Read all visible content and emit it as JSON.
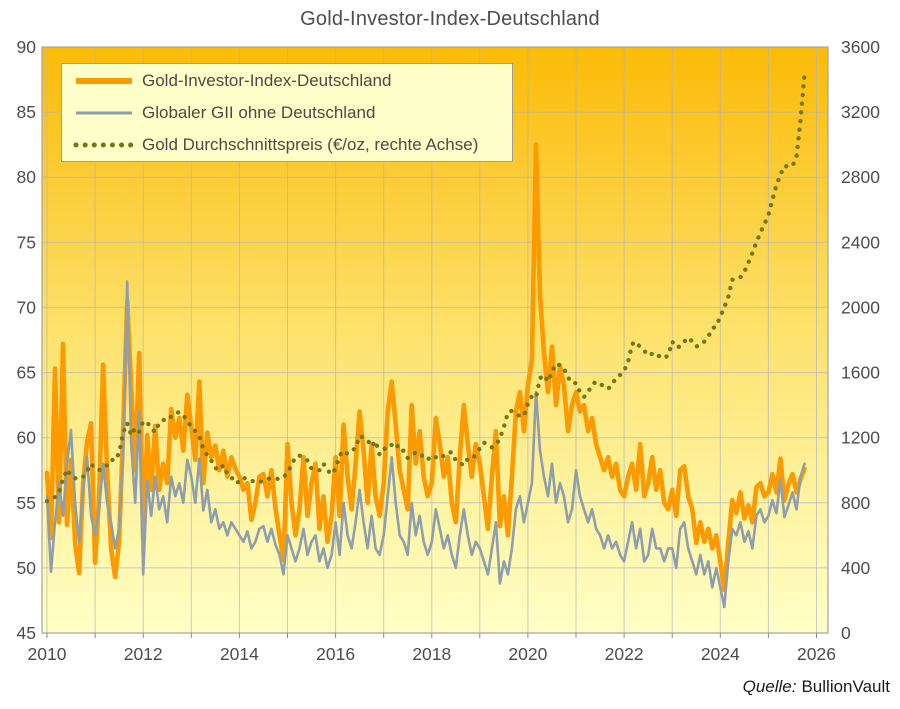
{
  "page": {
    "source_prefix": "Quelle:",
    "source_name": "BullionVault"
  },
  "chart_data": {
    "type": "line",
    "title": "Gold-Investor-Index-Deutschland",
    "x_start_year": 2010,
    "x_step_months": 1,
    "x_ticks": [
      2010,
      2011,
      2012,
      2013,
      2014,
      2015,
      2016,
      2017,
      2018,
      2019,
      2020,
      2021,
      2022,
      2023,
      2024,
      2025,
      2026
    ],
    "x_tick_labels": [
      "2010",
      "2012",
      "2014",
      "2016",
      "2018",
      "2020",
      "2022",
      "2024",
      "2026"
    ],
    "left_axis": {
      "min": 45,
      "max": 90,
      "step": 5,
      "ticks": [
        "45",
        "50",
        "55",
        "60",
        "65",
        "70",
        "75",
        "80",
        "85",
        "90"
      ]
    },
    "right_axis": {
      "min": 0,
      "max": 3600,
      "step": 400,
      "ticks": [
        "0",
        "400",
        "800",
        "1200",
        "1600",
        "2000",
        "2400",
        "2800",
        "3200",
        "3600"
      ]
    },
    "grid": true,
    "gridline_color": "#aab2c6",
    "border_color": "#a3a3a3",
    "axis_text_color": "#4d4d4d",
    "background_gradient": [
      "#FBBB07",
      "#FCCE3B",
      "#FDE36E",
      "#FEF29E",
      "#FFFFC6"
    ],
    "legend_position": "top-left",
    "series": [
      {
        "name": "Gold-Investor-Index-Deutschland",
        "axis": "left",
        "line": "thick-solid",
        "color": "#FC9A02",
        "values": [
          57.3,
          52.3,
          65.3,
          53.5,
          67.2,
          53.3,
          58.3,
          51.9,
          49.6,
          56.5,
          59.7,
          61.1,
          50.4,
          55.5,
          65.6,
          57.5,
          51.5,
          49.3,
          52.0,
          60.5,
          70.5,
          64.0,
          57.5,
          66.5,
          52.2,
          60.2,
          56.0,
          60.9,
          56.0,
          58.0,
          56.5,
          62.2,
          60.0,
          61.5,
          59.0,
          63.3,
          60.8,
          58.3,
          64.3,
          56.5,
          60.4,
          58.5,
          59.4,
          57.5,
          59.0,
          57.0,
          58.5,
          57.6,
          57.0,
          56.0,
          56.5,
          53.7,
          55.0,
          57.0,
          57.2,
          55.5,
          57.5,
          54.6,
          52.5,
          50.6,
          59.5,
          55.0,
          52.5,
          54.5,
          58.5,
          54.0,
          56.5,
          58.0,
          53.0,
          55.5,
          52.0,
          54.0,
          58.5,
          54.0,
          61.0,
          57.0,
          54.5,
          58.0,
          62.0,
          59.0,
          55.0,
          59.5,
          55.5,
          54.0,
          56.5,
          62.0,
          64.3,
          61.0,
          57.5,
          56.0,
          54.5,
          62.5,
          58.0,
          60.5,
          57.0,
          55.5,
          56.5,
          61.5,
          59.5,
          57.0,
          58.5,
          55.0,
          53.5,
          58.5,
          62.5,
          59.5,
          57.0,
          59.5,
          58.0,
          55.5,
          53.0,
          57.0,
          60.5,
          53.2,
          55.5,
          52.5,
          57.0,
          62.0,
          63.5,
          60.5,
          64.0,
          66.0,
          82.5,
          71.0,
          66.5,
          63.5,
          67.0,
          62.5,
          65.5,
          64.0,
          60.5,
          62.5,
          63.5,
          62.0,
          62.5,
          60.5,
          61.5,
          59.5,
          58.5,
          57.5,
          58.5,
          57.0,
          58.0,
          56.0,
          55.5,
          57.0,
          58.0,
          56.0,
          59.5,
          55.5,
          56.5,
          58.5,
          56.0,
          57.5,
          55.0,
          54.5,
          56.0,
          54.0,
          57.5,
          57.8,
          55.5,
          54.5,
          51.9,
          53.5,
          52.0,
          53.0,
          51.5,
          52.5,
          50.5,
          48.3,
          52.0,
          55.2,
          54.2,
          55.8,
          53.8,
          54.8,
          53.5,
          56.2,
          56.5,
          55.5,
          55.8,
          57.2,
          55.8,
          58.4,
          55.2,
          56.4,
          57.2,
          55.8,
          56.8,
          57.6
        ]
      },
      {
        "name": "Globaler GII ohne Deutschland",
        "axis": "left",
        "line": "thin-solid",
        "color": "#8D9EAC",
        "values": [
          55.5,
          49.7,
          53.5,
          56.5,
          54.0,
          58.0,
          60.6,
          55.0,
          52.0,
          56.0,
          58.5,
          54.0,
          52.5,
          54.5,
          58.0,
          55.0,
          53.5,
          51.5,
          53.0,
          58.5,
          72.0,
          59.5,
          55.0,
          62.0,
          49.5,
          56.7,
          54.0,
          57.0,
          54.5,
          55.5,
          53.5,
          57.0,
          55.5,
          56.5,
          55.0,
          58.3,
          57.0,
          55.0,
          58.4,
          54.4,
          56.0,
          53.5,
          54.5,
          53.0,
          53.5,
          52.5,
          53.5,
          53.0,
          52.5,
          52.0,
          52.8,
          51.5,
          52.0,
          53.0,
          53.2,
          52.0,
          53.0,
          51.8,
          51.0,
          49.5,
          52.5,
          51.5,
          50.5,
          51.5,
          53.0,
          51.0,
          52.0,
          52.5,
          50.5,
          51.5,
          50.0,
          51.0,
          53.5,
          51.0,
          55.0,
          52.5,
          51.5,
          53.5,
          56.0,
          53.5,
          51.5,
          54.0,
          51.5,
          51.0,
          52.5,
          55.5,
          58.5,
          55.0,
          52.5,
          52.0,
          51.0,
          55.0,
          52.5,
          54.0,
          52.0,
          51.0,
          52.0,
          54.5,
          53.0,
          51.5,
          52.5,
          51.0,
          50.0,
          52.5,
          54.5,
          52.5,
          51.0,
          52.0,
          51.5,
          50.5,
          49.5,
          51.5,
          53.5,
          48.8,
          50.5,
          49.5,
          51.5,
          54.5,
          55.5,
          53.5,
          55.0,
          56.5,
          63.5,
          59.0,
          57.0,
          55.5,
          58.0,
          55.0,
          56.5,
          55.5,
          53.5,
          54.5,
          57.5,
          55.5,
          54.5,
          53.5,
          54.5,
          53.0,
          52.5,
          51.5,
          52.5,
          51.5,
          52.0,
          51.0,
          50.5,
          52.0,
          53.5,
          51.5,
          53.0,
          50.5,
          51.0,
          53.0,
          51.5,
          51.5,
          50.5,
          51.5,
          51.5,
          50.0,
          53.0,
          53.5,
          51.5,
          50.5,
          49.5,
          51.0,
          49.5,
          50.5,
          48.5,
          50.0,
          48.5,
          47.0,
          50.5,
          53.0,
          52.5,
          53.5,
          52.0,
          52.8,
          51.5,
          54.0,
          54.5,
          53.5,
          54.0,
          55.2,
          54.2,
          56.8,
          53.9,
          54.8,
          55.8,
          54.5,
          57.0,
          58.0
        ]
      },
      {
        "name": "Gold Durchschnittspreis (€/oz, rechte Achse)",
        "axis": "right",
        "line": "dotted",
        "color": "#757514",
        "values": [
          810,
          825,
          835,
          865,
          945,
          1005,
          965,
          950,
          965,
          960,
          995,
          1040,
          1010,
          1000,
          1020,
          1030,
          1065,
          1060,
          1105,
          1230,
          1290,
          1215,
          1260,
          1235,
          1300,
          1295,
          1255,
          1235,
          1290,
          1310,
          1305,
          1330,
          1350,
          1357,
          1340,
          1296,
          1270,
          1240,
          1210,
          1130,
          1090,
          1060,
          1014,
          1001,
          1030,
          975,
          958,
          920,
          930,
          955,
          940,
          935,
          930,
          925,
          940,
          950,
          945,
          950,
          945,
          958,
          983,
          1032,
          1081,
          1090,
          1075,
          1060,
          1010,
          1005,
          1000,
          1040,
          1000,
          975,
          1010,
          1090,
          1120,
          1100,
          1120,
          1135,
          1210,
          1200,
          1185,
          1145,
          1180,
          1095,
          1125,
          1155,
          1155,
          1170,
          1120,
          1120,
          1075,
          1090,
          1110,
          1090,
          1090,
          1065,
          1090,
          1080,
          1070,
          1090,
          1110,
          1110,
          1060,
          1045,
          1030,
          1070,
          1070,
          1095,
          1135,
          1170,
          1160,
          1140,
          1155,
          1195,
          1265,
          1355,
          1365,
          1350,
          1330,
          1335,
          1410,
          1455,
          1445,
          1565,
          1585,
          1545,
          1605,
          1655,
          1645,
          1625,
          1570,
          1535,
          1535,
          1480,
          1450,
          1480,
          1525,
          1545,
          1530,
          1515,
          1500,
          1525,
          1570,
          1585,
          1610,
          1665,
          1775,
          1790,
          1755,
          1735,
          1705,
          1715,
          1695,
          1705,
          1690,
          1705,
          1790,
          1755,
          1760,
          1790,
          1815,
          1790,
          1760,
          1770,
          1790,
          1820,
          1870,
          1885,
          1945,
          2000,
          2065,
          2170,
          2180,
          2185,
          2220,
          2275,
          2335,
          2400,
          2460,
          2510,
          2570,
          2660,
          2750,
          2815,
          2870,
          2865,
          2870,
          2925,
          3150,
          3430
        ]
      }
    ]
  }
}
